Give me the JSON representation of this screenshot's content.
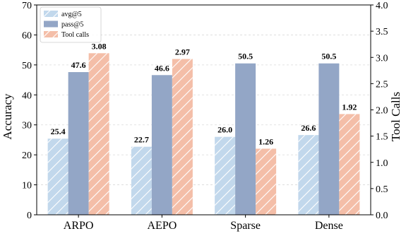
{
  "chart_data": {
    "type": "bar",
    "categories": [
      "ARPO",
      "AEPO",
      "Sparse",
      "Dense"
    ],
    "series": [
      {
        "name": "avg@5",
        "axis": "left",
        "values": [
          25.4,
          22.7,
          26.0,
          26.6
        ],
        "labels": [
          "25.4",
          "22.7",
          "26.0",
          "26.6"
        ],
        "color": "#c2d8ec",
        "hatch": true
      },
      {
        "name": "pass@5",
        "axis": "left",
        "values": [
          47.6,
          46.6,
          50.5,
          50.5
        ],
        "labels": [
          "47.6",
          "46.6",
          "50.5",
          "50.5"
        ],
        "color": "#93a6c6",
        "hatch": false
      },
      {
        "name": "Tool calls",
        "axis": "right",
        "values": [
          3.08,
          2.97,
          1.26,
          1.92
        ],
        "labels": [
          "3.08",
          "2.97",
          "1.26",
          "1.92"
        ],
        "color": "#f4bea8",
        "hatch": true
      }
    ],
    "ylabel": "Accuracy",
    "ylabel_right": "Tool Calls",
    "ylim": [
      0,
      70
    ],
    "ylim_right": [
      0,
      4.0
    ],
    "yticks": [
      "0",
      "10",
      "20",
      "30",
      "40",
      "50",
      "60",
      "70"
    ],
    "yticks_right": [
      "0.0",
      "0.5",
      "1.0",
      "1.5",
      "2.0",
      "2.5",
      "3.0",
      "3.5",
      "4.0"
    ],
    "grid": true,
    "legend_position": "top-left"
  }
}
